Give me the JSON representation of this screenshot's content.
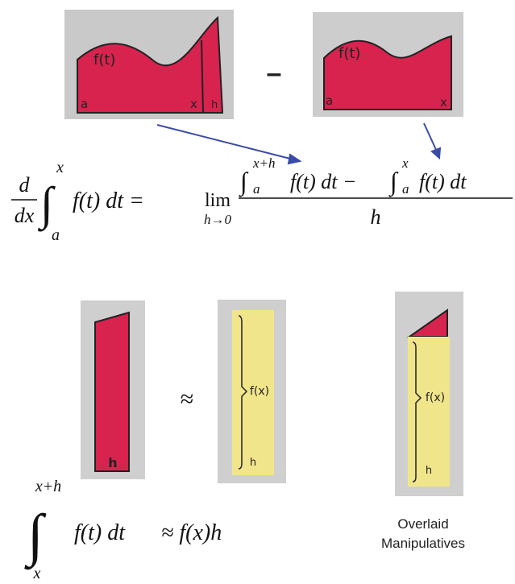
{
  "top_left_card": {
    "curve_label": "f(t)",
    "a_label": "a",
    "x_label": "x",
    "h_label": "h"
  },
  "top_operator": "–",
  "top_right_card": {
    "curve_label": "f(t)",
    "a_label": "a",
    "x_label": "x"
  },
  "main_equation": {
    "derivative_numerator": "d",
    "derivative_denominator": "dx",
    "integral_sign": "∫",
    "integral_upper": "x",
    "integral_lower": "a",
    "integrand": "f(t) dt =",
    "limit": "lim",
    "limit_sub": "h→0",
    "numerator_upper1": "x+h",
    "numerator_lower1": "a",
    "numerator_text1": "f(t) dt −",
    "numerator_upper2": "x",
    "numerator_lower2": "a",
    "numerator_text2": "f(t) dt",
    "denominator": "h"
  },
  "strip_card": {
    "h_label": "h"
  },
  "approx": "≈",
  "rect_card": {
    "height_label": "f(x)",
    "width_label": "h"
  },
  "overlay_card": {
    "height_label": "f(x)",
    "width_label": "h",
    "caption_lines": [
      "Overlaid",
      "Manipulatives"
    ]
  },
  "bottom_equation": {
    "integral_sign": "∫",
    "upper": "x+h",
    "lower": "x",
    "integrand": "f(t) dt",
    "result": "≈ f(x)h"
  }
}
